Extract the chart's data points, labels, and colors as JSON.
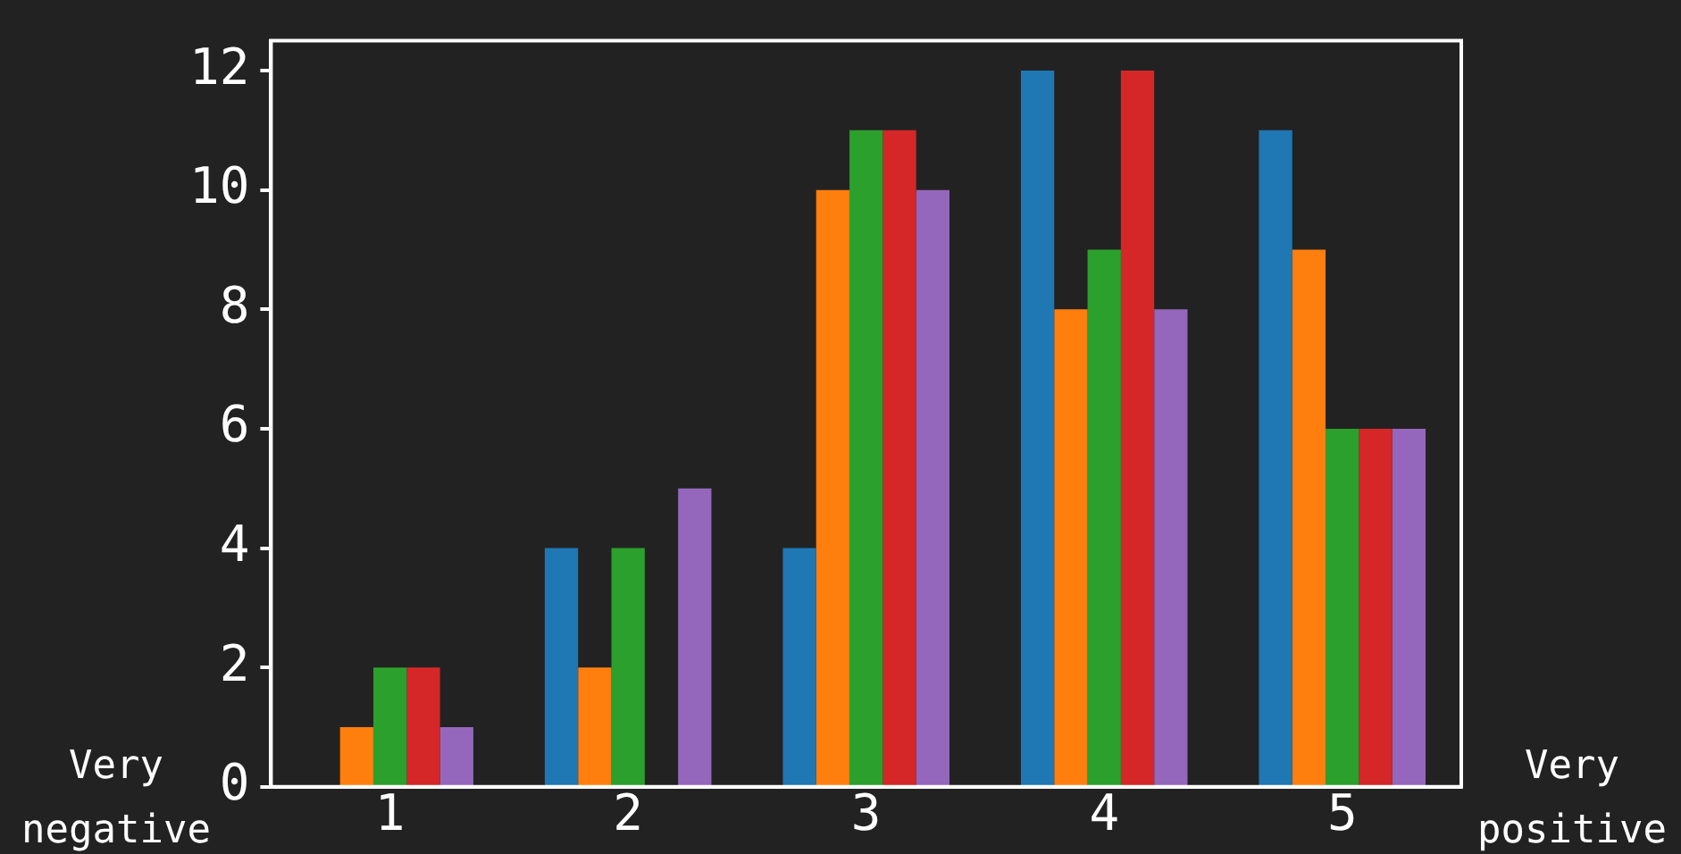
{
  "chart_data": {
    "type": "bar",
    "categories": [
      "1",
      "2",
      "3",
      "4",
      "5"
    ],
    "series": [
      {
        "color": "#1f77b4",
        "values": [
          0,
          4,
          4,
          12,
          11
        ]
      },
      {
        "color": "#ff7f0e",
        "values": [
          1,
          2,
          10,
          8,
          9
        ]
      },
      {
        "color": "#2ca02c",
        "values": [
          2,
          4,
          11,
          9,
          6
        ]
      },
      {
        "color": "#d62728",
        "values": [
          2,
          0,
          11,
          12,
          6
        ]
      },
      {
        "color": "#9467bd",
        "values": [
          1,
          5,
          10,
          8,
          6
        ]
      }
    ],
    "ylim": [
      0,
      12.5
    ],
    "yticks": [
      0,
      2,
      4,
      6,
      8,
      10,
      12
    ],
    "grid": false,
    "legend": false,
    "annotations": [
      "Very negative",
      "Very positive"
    ]
  }
}
